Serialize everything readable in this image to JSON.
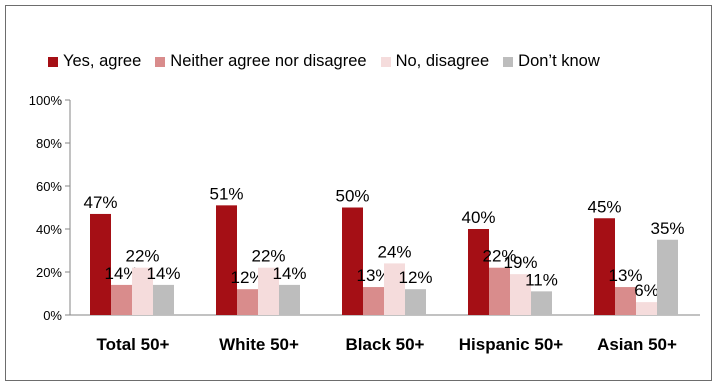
{
  "chart_data": {
    "type": "bar",
    "categories": [
      "Total 50+",
      "White 50+",
      "Black 50+",
      "Hispanic 50+",
      "Asian 50+"
    ],
    "series": [
      {
        "name": "Yes, agree",
        "color": "#a50f15",
        "values": [
          47,
          51,
          50,
          40,
          45
        ],
        "labels": [
          "47%",
          "51%",
          "50%",
          "40%",
          "45%"
        ]
      },
      {
        "name": "Neither agree nor disagree",
        "color": "#d98c8c",
        "values": [
          14,
          12,
          13,
          22,
          13
        ],
        "labels": [
          "14%",
          "12%",
          "13%",
          "22%",
          "13%"
        ]
      },
      {
        "name": "No, disagree",
        "color": "#f5dcdc",
        "values": [
          22,
          22,
          24,
          19,
          6
        ],
        "labels": [
          "22%",
          "22%",
          "24%",
          "19%",
          "6%"
        ]
      },
      {
        "name": "Don’t know",
        "color": "#bdbdbd",
        "values": [
          14,
          14,
          12,
          11,
          35
        ],
        "labels": [
          "14%",
          "14%",
          "12%",
          "11%",
          "35%"
        ]
      }
    ],
    "yticks": [
      "0%",
      "20%",
      "40%",
      "60%",
      "80%",
      "100%"
    ],
    "ylim": [
      0,
      100
    ],
    "grid": false,
    "legend_position": "top"
  }
}
